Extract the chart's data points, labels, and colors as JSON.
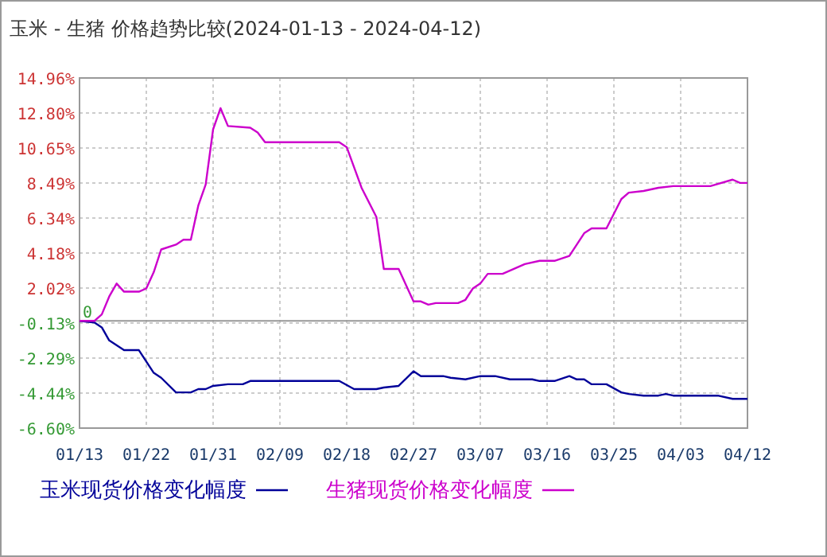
{
  "chart_data": {
    "type": "line",
    "title": "玉米 - 生猪 价格趋势比较(2024-01-13 - 2024-04-12)",
    "xlim": [
      "2024-01-13",
      "2024-04-12"
    ],
    "xticks": [
      {
        "value": "2024-01-13",
        "label": "01/13"
      },
      {
        "value": "2024-01-22",
        "label": "01/22"
      },
      {
        "value": "2024-01-31",
        "label": "01/31"
      },
      {
        "value": "2024-02-09",
        "label": "02/09"
      },
      {
        "value": "2024-02-18",
        "label": "02/18"
      },
      {
        "value": "2024-02-27",
        "label": "02/27"
      },
      {
        "value": "2024-03-07",
        "label": "03/07"
      },
      {
        "value": "2024-03-16",
        "label": "03/16"
      },
      {
        "value": "2024-03-25",
        "label": "03/25"
      },
      {
        "value": "2024-04-03",
        "label": "04/03"
      },
      {
        "value": "2024-04-12",
        "label": "04/12"
      }
    ],
    "ylim": [
      -6.6,
      14.96
    ],
    "yticks": [
      {
        "value": 14.96,
        "label": "14.96%"
      },
      {
        "value": 12.8,
        "label": "12.80%"
      },
      {
        "value": 10.65,
        "label": "10.65%"
      },
      {
        "value": 8.49,
        "label": "8.49%"
      },
      {
        "value": 6.34,
        "label": "6.34%"
      },
      {
        "value": 4.18,
        "label": "4.18%"
      },
      {
        "value": 2.02,
        "label": "2.02%"
      },
      {
        "value": -0.13,
        "label": "-0.13%"
      },
      {
        "value": -2.29,
        "label": "-2.29%"
      },
      {
        "value": -4.44,
        "label": "-4.44%"
      },
      {
        "value": -6.6,
        "label": "-6.60%"
      }
    ],
    "grid": true,
    "legend": "bottom",
    "marker": "none",
    "line_style": "solid",
    "ref_lines": [
      {
        "axis": "y",
        "value": 0,
        "label": "0",
        "color": "#999999",
        "line_style": "solid"
      }
    ],
    "series": [
      {
        "name": "玉米现货价格变化幅度",
        "color": "#000099",
        "x": [
          "2024-01-13",
          "2024-01-15",
          "2024-01-16",
          "2024-01-17",
          "2024-01-19",
          "2024-01-21",
          "2024-01-23",
          "2024-01-24",
          "2024-01-26",
          "2024-01-28",
          "2024-01-29",
          "2024-01-30",
          "2024-01-31",
          "2024-02-02",
          "2024-02-04",
          "2024-02-05",
          "2024-02-17",
          "2024-02-19",
          "2024-02-22",
          "2024-02-23",
          "2024-02-25",
          "2024-02-27",
          "2024-02-28",
          "2024-03-02",
          "2024-03-03",
          "2024-03-05",
          "2024-03-07",
          "2024-03-09",
          "2024-03-11",
          "2024-03-14",
          "2024-03-15",
          "2024-03-17",
          "2024-03-19",
          "2024-03-20",
          "2024-03-21",
          "2024-03-22",
          "2024-03-24",
          "2024-03-26",
          "2024-03-27",
          "2024-03-29",
          "2024-03-31",
          "2024-04-01",
          "2024-04-02",
          "2024-04-08",
          "2024-04-10",
          "2024-04-12"
        ],
        "values": [
          0,
          -0.1,
          -0.4,
          -1.2,
          -1.8,
          -1.8,
          -3.2,
          -3.5,
          -4.4,
          -4.4,
          -4.2,
          -4.2,
          -4.0,
          -3.9,
          -3.9,
          -3.7,
          -3.7,
          -4.2,
          -4.2,
          -4.1,
          -4.0,
          -3.1,
          -3.4,
          -3.4,
          -3.5,
          -3.6,
          -3.4,
          -3.4,
          -3.6,
          -3.6,
          -3.7,
          -3.7,
          -3.4,
          -3.6,
          -3.6,
          -3.9,
          -3.9,
          -4.4,
          -4.5,
          -4.6,
          -4.6,
          -4.5,
          -4.6,
          -4.6,
          -4.8,
          -4.8
        ]
      },
      {
        "name": "生猪现货价格变化幅度",
        "color": "#cc00cc",
        "x": [
          "2024-01-13",
          "2024-01-15",
          "2024-01-16",
          "2024-01-17",
          "2024-01-18",
          "2024-01-19",
          "2024-01-21",
          "2024-01-22",
          "2024-01-23",
          "2024-01-24",
          "2024-01-26",
          "2024-01-27",
          "2024-01-28",
          "2024-01-29",
          "2024-01-30",
          "2024-01-31",
          "2024-02-01",
          "2024-02-02",
          "2024-02-05",
          "2024-02-06",
          "2024-02-07",
          "2024-02-17",
          "2024-02-18",
          "2024-02-20",
          "2024-02-22",
          "2024-02-23",
          "2024-02-25",
          "2024-02-27",
          "2024-02-28",
          "2024-02-29",
          "2024-03-01",
          "2024-03-04",
          "2024-03-05",
          "2024-03-06",
          "2024-03-07",
          "2024-03-08",
          "2024-03-10",
          "2024-03-13",
          "2024-03-15",
          "2024-03-17",
          "2024-03-19",
          "2024-03-21",
          "2024-03-22",
          "2024-03-24",
          "2024-03-26",
          "2024-03-27",
          "2024-03-29",
          "2024-03-31",
          "2024-04-02",
          "2024-04-07",
          "2024-04-10",
          "2024-04-11",
          "2024-04-12"
        ],
        "values": [
          0,
          0,
          0.4,
          1.5,
          2.3,
          1.8,
          1.8,
          2.0,
          3.0,
          4.4,
          4.7,
          5.0,
          5.0,
          7.1,
          8.4,
          11.8,
          13.1,
          12.0,
          11.9,
          11.6,
          11.0,
          11.0,
          10.7,
          8.2,
          6.4,
          3.2,
          3.2,
          1.2,
          1.2,
          1.0,
          1.1,
          1.1,
          1.3,
          2.0,
          2.3,
          2.9,
          2.9,
          3.5,
          3.7,
          3.7,
          4.0,
          5.4,
          5.7,
          5.7,
          7.5,
          7.9,
          8.0,
          8.2,
          8.3,
          8.3,
          8.7,
          8.5,
          8.5
        ]
      }
    ]
  }
}
